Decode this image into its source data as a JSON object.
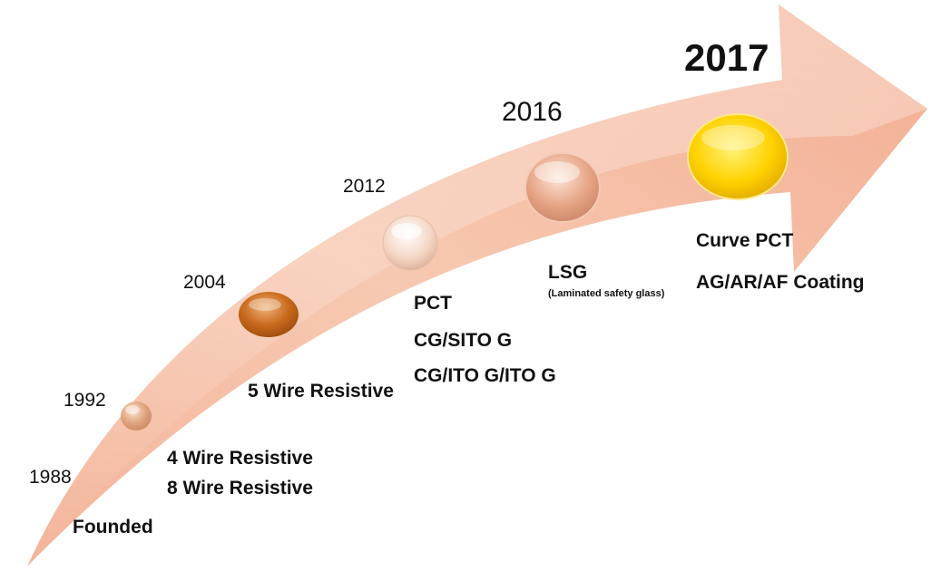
{
  "colors": {
    "arrow_light": "#fbe3d6",
    "arrow_mid": "#f6c2aa",
    "arrow_dark": "#f2a98b",
    "bubble_1992": "#dca07a",
    "bubble_2004": "#c0641a",
    "bubble_2012": "#f6dccc",
    "bubble_2016": "#e8a98a",
    "bubble_2017": "#ffd21a"
  },
  "milestones": [
    {
      "year": "1988",
      "items": [
        "Founded"
      ]
    },
    {
      "year": "1992",
      "items": [
        "4 Wire Resistive",
        "8 Wire Resistive"
      ]
    },
    {
      "year": "2004",
      "items": [
        "5 Wire Resistive"
      ]
    },
    {
      "year": "2012",
      "items": [
        "PCT",
        "CG/SITO G",
        "CG/ITO G/ITO G"
      ]
    },
    {
      "year": "2016",
      "items": [
        "LSG"
      ],
      "note": "(Laminated safety glass)"
    },
    {
      "year": "2017",
      "items": [
        "Curve PCT",
        "AG/AR/AF Coating"
      ]
    }
  ]
}
